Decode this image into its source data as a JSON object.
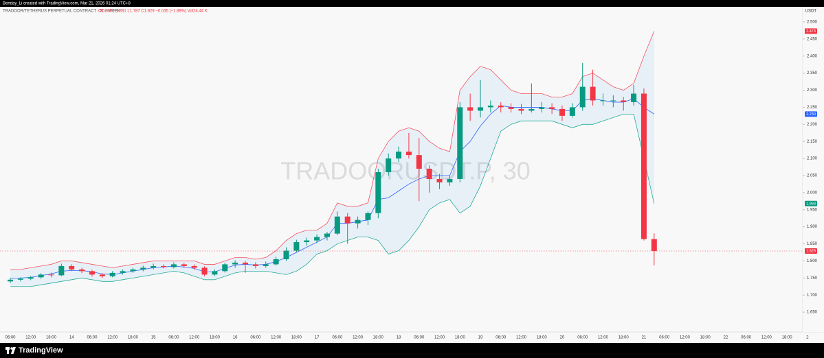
{
  "chart_data": {
    "type": "candlestick",
    "header": "Benday_Li created with TradingView.com, Mar 21, 2026 01:24 UTC+8",
    "title": "TRADOOR/TETHERUS PERPETUAL CONTRACT · 30 · WEEK",
    "ohlc_label": "O1.864 H1.881 L1.787 C1.829 −0.035 (−1.88%) Vol24.44 K",
    "watermark": "TRADOORUSDT.P, 30",
    "axis_unit": "USDT",
    "brand": "TradingView",
    "up_color": "#089981",
    "down_color": "#f23645",
    "categories": [
      "06:00",
      null,
      "12:00",
      null,
      "18:00",
      null,
      "14",
      null,
      "06:00",
      null,
      "12:00",
      null,
      "18:00",
      null,
      "15",
      null,
      "06:00",
      null,
      "12:00",
      null,
      "18:00",
      null,
      "16",
      null,
      "06:00",
      null,
      "12:00",
      null,
      "18:00",
      null,
      "17",
      null,
      "06:00",
      null,
      "12:00",
      null,
      "18:00",
      null,
      "18",
      null,
      "06:00",
      null,
      "12:00",
      null,
      "18:00",
      null,
      "19",
      null,
      "06:00",
      null,
      "12:00",
      null,
      "18:00",
      null,
      "20",
      null,
      "06:00",
      null,
      "12:00",
      null,
      "18:00",
      null,
      "21",
      null,
      "06:00",
      null,
      "12:00",
      null,
      "18:00",
      null,
      "22",
      null,
      "06:00",
      null,
      "12:00",
      null,
      "18:00",
      null,
      "2",
      null
    ],
    "open": [
      1.74,
      1.745,
      1.748,
      1.752,
      1.76,
      1.758,
      1.785,
      1.775,
      1.77,
      1.76,
      1.755,
      1.765,
      1.77,
      1.775,
      1.78,
      1.785,
      1.782,
      1.79,
      1.785,
      1.78,
      1.76,
      1.77,
      1.79,
      1.795,
      1.79,
      1.785,
      1.79,
      1.805,
      1.83,
      1.855,
      1.86,
      1.87,
      1.88,
      1.93,
      1.91,
      1.92,
      1.94,
      2.06,
      2.1,
      2.12,
      2.11,
      2.07,
      2.04,
      2.03,
      2.04,
      2.25,
      2.24,
      2.25,
      2.255,
      2.25,
      2.245,
      2.24,
      2.245,
      2.25,
      2.245,
      2.225,
      2.25,
      2.31,
      2.27,
      2.27,
      2.27,
      2.265,
      2.29,
      1.864,
      null,
      null,
      null,
      null,
      null,
      null,
      null,
      null,
      null,
      null,
      null,
      null,
      null,
      null,
      null,
      null
    ],
    "high": [
      1.75,
      1.752,
      1.756,
      1.764,
      1.766,
      1.792,
      1.79,
      1.78,
      1.774,
      1.764,
      1.77,
      1.775,
      1.78,
      1.786,
      1.792,
      1.79,
      1.796,
      1.794,
      1.79,
      1.784,
      1.775,
      1.795,
      1.802,
      1.8,
      1.796,
      1.798,
      1.812,
      1.84,
      1.862,
      1.868,
      1.878,
      1.885,
      1.945,
      1.94,
      1.93,
      1.945,
      2.07,
      2.115,
      2.135,
      2.175,
      2.16,
      2.08,
      2.055,
      2.05,
      2.265,
      2.29,
      2.33,
      2.27,
      2.265,
      2.262,
      2.26,
      2.32,
      2.265,
      2.262,
      2.255,
      2.262,
      2.38,
      2.36,
      2.29,
      2.285,
      2.28,
      2.315,
      2.305,
      1.881,
      null,
      null,
      null,
      null,
      null,
      null,
      null,
      null,
      null,
      null,
      null,
      null,
      null,
      null,
      null,
      null
    ],
    "low": [
      1.735,
      1.74,
      1.744,
      1.748,
      1.752,
      1.755,
      1.77,
      1.764,
      1.754,
      1.75,
      1.752,
      1.76,
      1.765,
      1.77,
      1.775,
      1.778,
      1.778,
      1.78,
      1.774,
      1.755,
      1.756,
      1.766,
      1.78,
      1.765,
      1.778,
      1.78,
      1.786,
      1.8,
      1.825,
      1.845,
      1.852,
      1.86,
      1.875,
      1.85,
      1.895,
      1.905,
      1.925,
      2.05,
      2.09,
      2.1,
      1.975,
      2.0,
      2.01,
      2.02,
      2.03,
      2.21,
      2.22,
      2.235,
      2.235,
      2.235,
      2.23,
      2.235,
      2.235,
      2.23,
      2.21,
      2.22,
      2.24,
      2.255,
      2.255,
      2.25,
      2.24,
      2.255,
      1.86,
      1.787,
      null,
      null,
      null,
      null,
      null,
      null,
      null,
      null,
      null,
      null,
      null,
      null,
      null,
      null,
      null,
      null
    ],
    "close": [
      1.745,
      1.748,
      1.752,
      1.76,
      1.758,
      1.785,
      1.775,
      1.77,
      1.76,
      1.755,
      1.765,
      1.77,
      1.775,
      1.78,
      1.785,
      1.782,
      1.79,
      1.785,
      1.78,
      1.76,
      1.77,
      1.79,
      1.795,
      1.79,
      1.785,
      1.79,
      1.805,
      1.83,
      1.855,
      1.86,
      1.87,
      1.88,
      1.93,
      1.91,
      1.92,
      1.94,
      2.06,
      2.1,
      2.12,
      2.11,
      2.07,
      2.04,
      2.03,
      2.04,
      2.25,
      2.24,
      2.25,
      2.255,
      2.25,
      2.245,
      2.24,
      2.245,
      2.25,
      2.245,
      2.225,
      2.25,
      2.31,
      2.27,
      2.27,
      2.27,
      2.265,
      2.29,
      1.864,
      1.829,
      null,
      null,
      null,
      null,
      null,
      null,
      null,
      null,
      null,
      null,
      null,
      null,
      null,
      null,
      null,
      null
    ],
    "series": [
      {
        "name": "Upper",
        "color": "#f7525f",
        "values": [
          1.775,
          1.775,
          1.78,
          1.785,
          1.79,
          1.8,
          1.8,
          1.795,
          1.79,
          1.785,
          1.78,
          1.785,
          1.79,
          1.795,
          1.8,
          1.8,
          1.8,
          1.8,
          1.8,
          1.79,
          1.79,
          1.8,
          1.81,
          1.81,
          1.805,
          1.81,
          1.83,
          1.86,
          1.88,
          1.89,
          1.89,
          1.91,
          1.97,
          1.96,
          1.96,
          1.97,
          2.1,
          2.15,
          2.18,
          2.19,
          2.18,
          2.15,
          2.13,
          2.12,
          2.3,
          2.34,
          2.37,
          2.36,
          2.33,
          2.3,
          2.29,
          2.29,
          2.29,
          2.28,
          2.28,
          2.29,
          2.34,
          2.35,
          2.33,
          2.31,
          2.3,
          2.32,
          2.4,
          2.473,
          null,
          null,
          null,
          null,
          null,
          null,
          null,
          null,
          null,
          null,
          null,
          null,
          null,
          null,
          null,
          null
        ]
      },
      {
        "name": "Basis",
        "color": "#2962ff",
        "values": [
          1.75,
          1.75,
          1.752,
          1.757,
          1.762,
          1.77,
          1.772,
          1.772,
          1.768,
          1.762,
          1.76,
          1.765,
          1.77,
          1.775,
          1.78,
          1.782,
          1.785,
          1.782,
          1.778,
          1.768,
          1.768,
          1.778,
          1.788,
          1.79,
          1.788,
          1.79,
          1.798,
          1.81,
          1.825,
          1.84,
          1.855,
          1.87,
          1.91,
          1.91,
          1.915,
          1.92,
          1.98,
          1.985,
          2.005,
          2.025,
          2.04,
          2.05,
          2.05,
          2.05,
          2.12,
          2.15,
          2.195,
          2.23,
          2.255,
          2.25,
          2.25,
          2.25,
          2.25,
          2.245,
          2.24,
          2.24,
          2.27,
          2.275,
          2.27,
          2.265,
          2.265,
          2.275,
          2.25,
          2.23,
          null,
          null,
          null,
          null,
          null,
          null,
          null,
          null,
          null,
          null,
          null,
          null,
          null,
          null,
          null,
          null
        ]
      },
      {
        "name": "Lower",
        "color": "#22ab94",
        "values": [
          1.725,
          1.725,
          1.725,
          1.73,
          1.735,
          1.74,
          1.745,
          1.75,
          1.745,
          1.74,
          1.74,
          1.745,
          1.75,
          1.755,
          1.76,
          1.765,
          1.77,
          1.765,
          1.755,
          1.745,
          1.745,
          1.755,
          1.765,
          1.77,
          1.77,
          1.77,
          1.765,
          1.76,
          1.77,
          1.79,
          1.82,
          1.83,
          1.85,
          1.86,
          1.87,
          1.87,
          1.86,
          1.82,
          1.83,
          1.86,
          1.9,
          1.95,
          1.97,
          1.98,
          1.94,
          1.96,
          2.02,
          2.1,
          2.18,
          2.2,
          2.21,
          2.21,
          2.21,
          2.21,
          2.2,
          2.19,
          2.2,
          2.2,
          2.21,
          2.22,
          2.23,
          2.23,
          2.1,
          1.968,
          null,
          null,
          null,
          null,
          null,
          null,
          null,
          null,
          null,
          null,
          null,
          null,
          null,
          null,
          null,
          null
        ]
      }
    ],
    "price_tags": [
      {
        "value": 2.473,
        "label": "2.473",
        "color": "#f23645"
      },
      {
        "value": 2.23,
        "label": "2.230",
        "color": "#2962ff"
      },
      {
        "value": 1.968,
        "label": "1.968",
        "color": "#089981"
      },
      {
        "value": 1.829,
        "label": "1.829",
        "color": "#f23645"
      }
    ],
    "ylim": [
      1.592,
      2.52
    ],
    "yticks": [
      {
        "value": 1.65,
        "label": "1.650"
      },
      {
        "value": 1.7,
        "label": "1.700"
      },
      {
        "value": 1.75,
        "label": "1.750"
      },
      {
        "value": 1.8,
        "label": "1.800"
      },
      {
        "value": 1.85,
        "label": "1.850"
      },
      {
        "value": 1.9,
        "label": "1.900"
      },
      {
        "value": 1.95,
        "label": "1.950"
      },
      {
        "value": 2.0,
        "label": "2.000"
      },
      {
        "value": 2.05,
        "label": "2.050"
      },
      {
        "value": 2.1,
        "label": "2.100"
      },
      {
        "value": 2.15,
        "label": "2.150"
      },
      {
        "value": 2.2,
        "label": "2.200"
      },
      {
        "value": 2.25,
        "label": "2.250"
      },
      {
        "value": 2.3,
        "label": "2.300"
      },
      {
        "value": 2.35,
        "label": "2.350"
      },
      {
        "value": 2.4,
        "label": "2.400"
      },
      {
        "value": 2.45,
        "label": "2.450"
      },
      {
        "value": 2.5,
        "label": "2.500"
      }
    ]
  }
}
